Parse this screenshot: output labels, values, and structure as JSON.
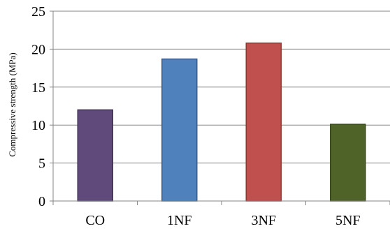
{
  "chart_data": {
    "type": "bar",
    "ylabel": "Compressive strength (MPa)",
    "ylim": [
      0,
      25
    ],
    "yticks": [
      0,
      5,
      10,
      15,
      20,
      25
    ],
    "grid": true,
    "legend": "none",
    "categories": [
      "CO",
      "1NF",
      "3NF",
      "5NF"
    ],
    "values": [
      12.0,
      18.7,
      20.8,
      10.1
    ],
    "colors": [
      "#604a7b",
      "#4f81bd",
      "#c0504d",
      "#4f6228"
    ],
    "border_colors": [
      "#3f3151",
      "#385d8a",
      "#8c3836",
      "#3a4a1d"
    ]
  }
}
